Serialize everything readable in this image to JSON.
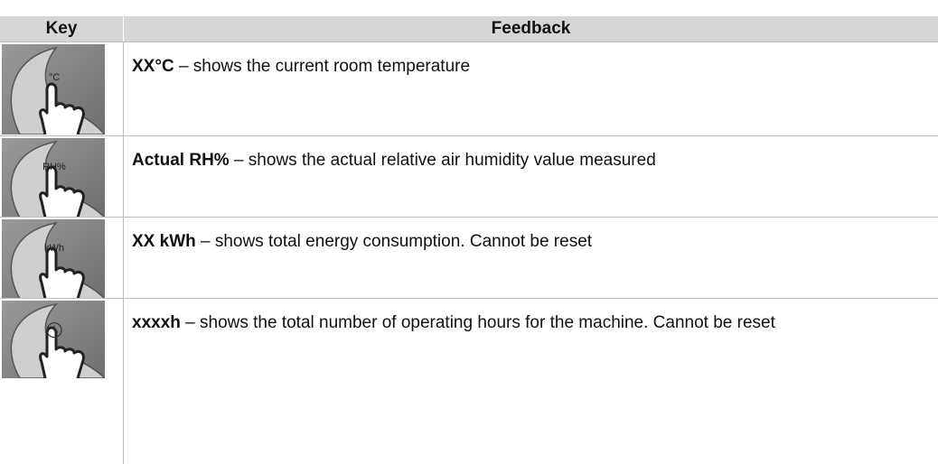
{
  "table": {
    "header": [
      "Key",
      "Feedback"
    ],
    "rows": [
      {
        "icon_label": "°C",
        "term": "XX°C",
        "description": "– shows the current room temperature"
      },
      {
        "icon_label": "RH%",
        "term": "Actual RH%",
        "description": "– shows the actual relative air humidity value measured"
      },
      {
        "icon_label": "kWh",
        "term": "XX kWh",
        "description": "– shows total energy consumption. Cannot be reset"
      },
      {
        "term": "xxxxh",
        "description": "– shows the total number of operating hours for the machine. Cannot be reset"
      }
    ]
  }
}
